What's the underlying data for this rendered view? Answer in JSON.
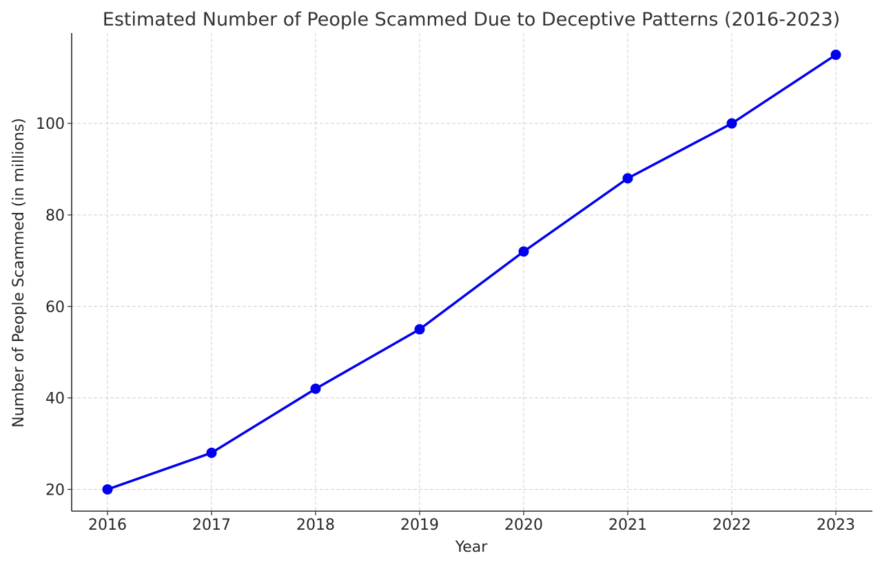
{
  "chart_data": {
    "type": "line",
    "title": "Estimated Number of People Scammed Due to Deceptive Patterns (2016-2023)",
    "xlabel": "Year",
    "ylabel": "Number of People Scammed (in millions)",
    "categories": [
      "2016",
      "2017",
      "2018",
      "2019",
      "2020",
      "2021",
      "2022",
      "2023"
    ],
    "series": [
      {
        "values": [
          20,
          28,
          42,
          55,
          72,
          88,
          100,
          115
        ],
        "color": "#0000ee"
      }
    ],
    "yticks": [
      20,
      40,
      60,
      80,
      100
    ],
    "ylim": [
      15.25,
      119.75
    ],
    "grid": true,
    "marker": "circle"
  }
}
